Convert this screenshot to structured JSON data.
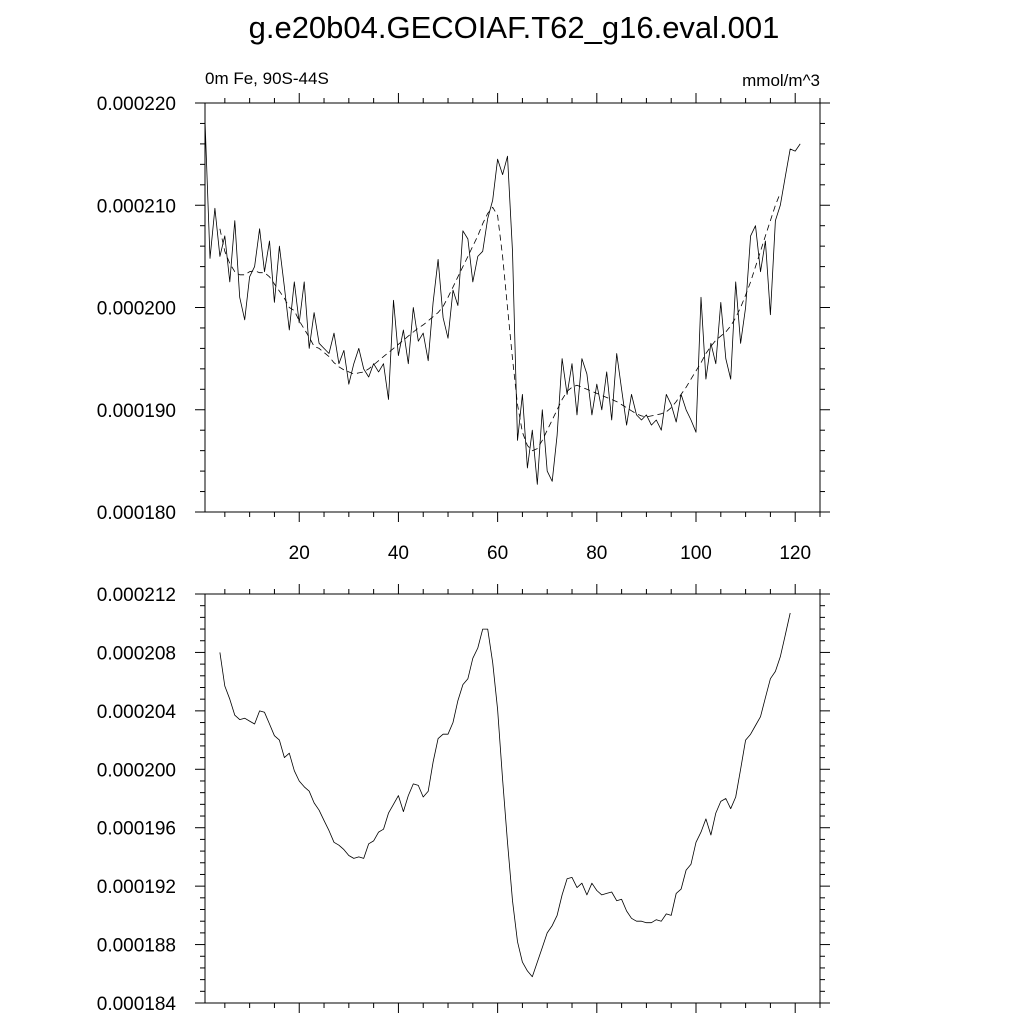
{
  "chart_data": [
    {
      "type": "line",
      "title": "g.e20b04.GECOIAF.T62_g16.eval.001",
      "subtitle_left": "0m Fe, 90S-44S",
      "subtitle_right": "mmol/m^3",
      "xlim": [
        1,
        125
      ],
      "ylim": [
        0.00018,
        0.00022
      ],
      "x_ticks": [
        20,
        40,
        60,
        80,
        100,
        120
      ],
      "x_tick_labels": [
        "20",
        "40",
        "60",
        "80",
        "100",
        "120"
      ],
      "y_ticks": [
        0.00018,
        0.00019,
        0.0002,
        0.00021,
        0.00022
      ],
      "y_tick_labels": [
        "0.000180",
        "0.000190",
        "0.000200",
        "0.000210",
        "0.000220"
      ],
      "grid": false,
      "series": [
        {
          "style": "solid",
          "x_start": 1,
          "x_step": 1,
          "values": [
            0.0002183,
            0.0002048,
            0.0002097,
            0.000205,
            0.000207,
            0.0002025,
            0.0002085,
            0.000201,
            0.0001988,
            0.000203,
            0.000204,
            0.0002077,
            0.0002035,
            0.0002065,
            0.0002005,
            0.000206,
            0.000202,
            0.0001978,
            0.0002025,
            0.0001985,
            0.0002025,
            0.000196,
            0.0001995,
            0.0001965,
            0.000196,
            0.0001955,
            0.0001975,
            0.0001945,
            0.0001958,
            0.0001925,
            0.0001945,
            0.000196,
            0.000194,
            0.0001932,
            0.0001945,
            0.0001937,
            0.0001945,
            0.000191,
            0.0002007,
            0.0001953,
            0.0001978,
            0.0001945,
            0.0002,
            0.0001967,
            0.0001975,
            0.0001948,
            0.0002005,
            0.0002047,
            0.000199,
            0.000197,
            0.0002017,
            0.0002002,
            0.0002075,
            0.0002067,
            0.0002025,
            0.000205,
            0.0002055,
            0.0002087,
            0.0002105,
            0.0002145,
            0.000213,
            0.0002148,
            0.0002055,
            0.000187,
            0.0001915,
            0.0001843,
            0.000188,
            0.0001827,
            0.00019,
            0.000184,
            0.000183,
            0.0001875,
            0.000195,
            0.0001915,
            0.0001945,
            0.0001895,
            0.000195,
            0.0001935,
            0.0001895,
            0.0001925,
            0.00019,
            0.0001937,
            0.000189,
            0.0001955,
            0.000192,
            0.0001885,
            0.0001915,
            0.0001895,
            0.000189,
            0.0001895,
            0.0001885,
            0.000189,
            0.000188,
            0.0001915,
            0.0001905,
            0.0001888,
            0.0001915,
            0.00019,
            0.000189,
            0.0001878,
            0.000201,
            0.000193,
            0.0001965,
            0.0001945,
            0.0002005,
            0.000195,
            0.000193,
            0.0002025,
            0.0001965,
            0.0002,
            0.000207,
            0.000208,
            0.0002035,
            0.0002065,
            0.0001993,
            0.0002085,
            0.00021,
            0.0002128,
            0.0002155,
            0.0002153,
            0.000216
          ]
        },
        {
          "style": "dashed",
          "x_start": 4,
          "x_step": 1,
          "values": [
            0.0002077,
            0.0002055,
            0.0002043,
            0.0002035,
            0.0002032,
            0.0002032,
            0.0002035,
            0.0002036,
            0.0002034,
            0.0002034,
            0.000203,
            0.0002023,
            0.0002016,
            0.0002009,
            0.0002,
            0.0001997,
            0.0001987,
            0.0001979,
            0.0001971,
            0.0001962,
            0.000196,
            0.0001956,
            0.0001952,
            0.0001946,
            0.0001942,
            0.0001939,
            0.0001937,
            0.0001935,
            0.0001936,
            0.0001937,
            0.000194,
            0.0001944,
            0.0001948,
            0.0001952,
            0.0001956,
            0.000196,
            0.0001964,
            0.0001968,
            0.0001972,
            0.0001976,
            0.000198,
            0.0001983,
            0.0001987,
            0.0001991,
            0.0001995,
            0.0002001,
            0.000201,
            0.000202,
            0.000203,
            0.000204,
            0.000205,
            0.000206,
            0.000207,
            0.0002082,
            0.0002092,
            0.0002098,
            0.000209,
            0.000205,
            0.0002,
            0.000195,
            0.0001905,
            0.0001878,
            0.0001865,
            0.000186,
            0.0001862,
            0.000187,
            0.000188,
            0.000189,
            0.00019,
            0.000191,
            0.0001918,
            0.0001922,
            0.0001924,
            0.0001922,
            0.000192,
            0.0001918,
            0.0001916,
            0.0001914,
            0.0001912,
            0.000191,
            0.0001908,
            0.0001905,
            0.0001902,
            0.0001899,
            0.0001896,
            0.0001894,
            0.0001893,
            0.0001894,
            0.0001895,
            0.0001896,
            0.0001898,
            0.0001902,
            0.0001908,
            0.0001915,
            0.0001922,
            0.000193,
            0.0001938,
            0.0001946,
            0.0001955,
            0.0001962,
            0.0001968,
            0.0001972,
            0.0001976,
            0.0001982,
            0.000199,
            0.0002,
            0.0002012,
            0.0002025,
            0.000204,
            0.0002055,
            0.000207,
            0.0002085,
            0.00021,
            0.0002112
          ]
        }
      ]
    },
    {
      "type": "line",
      "xlim": [
        1,
        125
      ],
      "ylim": [
        0.000184,
        0.000212
      ],
      "x_ticks": [
        20,
        40,
        60,
        80,
        100,
        120
      ],
      "y_ticks": [
        0.000184,
        0.000188,
        0.000192,
        0.000196,
        0.0002,
        0.000204,
        0.000208,
        0.000212
      ],
      "y_tick_labels": [
        "0.000184",
        "0.000188",
        "0.000192",
        "0.000196",
        "0.000200",
        "0.000204",
        "0.000208",
        "0.000212"
      ],
      "grid": false,
      "series": [
        {
          "style": "solid",
          "x_start": 4,
          "x_step": 1,
          "values": [
            0.000208,
            0.0002057,
            0.0002048,
            0.0002037,
            0.0002034,
            0.0002035,
            0.0002033,
            0.0002031,
            0.000204,
            0.0002039,
            0.0002031,
            0.0002023,
            0.000202,
            0.0002008,
            0.0002011,
            0.0001999,
            0.0001992,
            0.0001988,
            0.0001985,
            0.0001977,
            0.0001972,
            0.0001965,
            0.0001958,
            0.000195,
            0.0001948,
            0.0001945,
            0.0001941,
            0.0001939,
            0.000194,
            0.0001939,
            0.0001949,
            0.0001951,
            0.0001957,
            0.0001959,
            0.000197,
            0.0001976,
            0.0001982,
            0.0001971,
            0.0001982,
            0.000199,
            0.0001989,
            0.0001981,
            0.0001985,
            0.0002005,
            0.0002021,
            0.0002024,
            0.0002024,
            0.0002032,
            0.0002047,
            0.0002058,
            0.0002062,
            0.0002076,
            0.0002083,
            0.0002096,
            0.0002096,
            0.0002073,
            0.0002041,
            0.0001993,
            0.000195,
            0.000191,
            0.0001882,
            0.0001868,
            0.0001862,
            0.0001858,
            0.0001868,
            0.0001878,
            0.0001888,
            0.0001893,
            0.00019,
            0.0001914,
            0.0001925,
            0.0001926,
            0.0001919,
            0.0001922,
            0.0001914,
            0.0001922,
            0.0001917,
            0.0001914,
            0.0001915,
            0.0001916,
            0.000191,
            0.0001911,
            0.0001903,
            0.0001898,
            0.0001896,
            0.0001896,
            0.0001895,
            0.0001895,
            0.0001897,
            0.0001896,
            0.0001901,
            0.00019,
            0.0001915,
            0.0001918,
            0.0001931,
            0.0001935,
            0.000195,
            0.0001957,
            0.0001966,
            0.0001955,
            0.000197,
            0.0001978,
            0.000198,
            0.0001973,
            0.0001981,
            0.0002,
            0.000202,
            0.0002024,
            0.000203,
            0.0002036,
            0.0002049,
            0.0002062,
            0.0002067,
            0.0002077,
            0.0002092,
            0.0002107
          ]
        }
      ]
    }
  ]
}
